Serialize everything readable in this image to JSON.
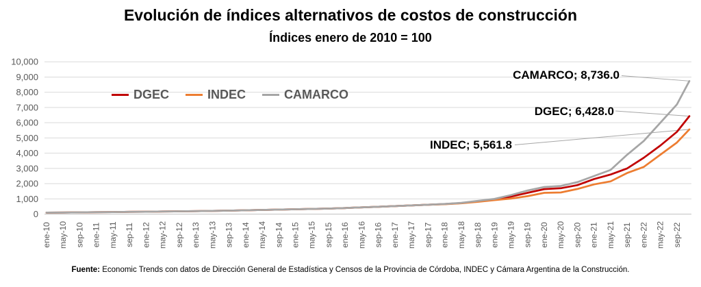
{
  "header": {
    "title": "Evolución de índices alternativos de costos de construcción",
    "subtitle": "Índices enero de 2010 = 100"
  },
  "legend": [
    {
      "name": "DGEC",
      "color": "#C00000"
    },
    {
      "name": "INDEC",
      "color": "#ED7D31"
    },
    {
      "name": "CAMARCO",
      "color": "#A6A6A6"
    }
  ],
  "end_labels": {
    "camarco": "CAMARCO; 8,736.0",
    "dgec": "DGEC; 6,428.0",
    "indec": "INDEC; 5,561.8"
  },
  "footer": {
    "bold": "Fuente:",
    "text": " Economic Trends con datos de Dirección General de Estadística y Censos de la Provincia de Córdoba, INDEC y Cámara Argentina de la Construcción."
  },
  "chart_data": {
    "type": "line",
    "title": "Evolución de índices alternativos de costos de construcción",
    "subtitle": "Índices enero de 2010 = 100",
    "ylim": [
      0,
      10000
    ],
    "y_tick_step": 1000,
    "y_tick_labels": [
      "0",
      "1,000",
      "2,000",
      "3,000",
      "4,000",
      "5,000",
      "6,000",
      "7,000",
      "8,000",
      "9,000",
      "10,000"
    ],
    "grid": "horizontal",
    "legend_position": "inside-top-left",
    "x_unit": "months since ene-10",
    "x_tick_step_months": 4,
    "x_tick_labels": [
      "ene-10",
      "may-10",
      "sep-10",
      "ene-11",
      "may-11",
      "sep-11",
      "ene-12",
      "may-12",
      "sep-12",
      "ene-13",
      "may-13",
      "sep-13",
      "ene-14",
      "may-14",
      "sep-14",
      "ene-15",
      "may-15",
      "sep-15",
      "ene-16",
      "may-16",
      "sep-16",
      "ene-17",
      "may-17",
      "sep-17",
      "ene-18",
      "may-18",
      "sep-18",
      "ene-19",
      "may-19",
      "sep-19",
      "ene-20",
      "may-20",
      "sep-20",
      "ene-21",
      "may-21",
      "sep-21",
      "ene-22",
      "may-22",
      "sep-22"
    ],
    "anchor_months": [
      0,
      4,
      8,
      12,
      16,
      20,
      24,
      28,
      32,
      36,
      40,
      44,
      48,
      52,
      56,
      60,
      64,
      68,
      72,
      76,
      80,
      84,
      88,
      92,
      96,
      100,
      104,
      108,
      112,
      116,
      120,
      124,
      128,
      132,
      136,
      140,
      144,
      148,
      152,
      155
    ],
    "series": [
      {
        "name": "DGEC",
        "color": "#C00000",
        "final_value": 6428.0,
        "final_label": "DGEC; 6,428.0",
        "values": [
          100,
          108,
          116,
          126,
          136,
          147,
          158,
          170,
          183,
          197,
          213,
          231,
          251,
          274,
          295,
          317,
          340,
          366,
          400,
          440,
          480,
          525,
          570,
          618,
          660,
          725,
          840,
          960,
          1150,
          1400,
          1640,
          1700,
          1900,
          2300,
          2600,
          3000,
          3700,
          4500,
          5400,
          6428
        ]
      },
      {
        "name": "INDEC",
        "color": "#ED7D31",
        "final_value": 5561.8,
        "final_label": "INDEC; 5,561.8",
        "values": [
          100,
          108,
          116,
          126,
          136,
          147,
          158,
          170,
          183,
          197,
          213,
          231,
          251,
          274,
          295,
          317,
          340,
          366,
          400,
          440,
          480,
          525,
          570,
          618,
          650,
          710,
          810,
          920,
          1020,
          1180,
          1400,
          1420,
          1650,
          1950,
          2150,
          2700,
          3100,
          3900,
          4700,
          5561.8
        ]
      },
      {
        "name": "CAMARCO",
        "color": "#A6A6A6",
        "final_value": 8736.0,
        "final_label": "CAMARCO; 8,736.0",
        "values": [
          100,
          108,
          116,
          126,
          136,
          147,
          158,
          170,
          183,
          197,
          213,
          231,
          251,
          274,
          295,
          317,
          340,
          366,
          400,
          440,
          480,
          525,
          570,
          618,
          670,
          740,
          870,
          1000,
          1250,
          1550,
          1780,
          1850,
          2100,
          2500,
          2900,
          3900,
          4800,
          6000,
          7200,
          8736
        ]
      }
    ]
  }
}
